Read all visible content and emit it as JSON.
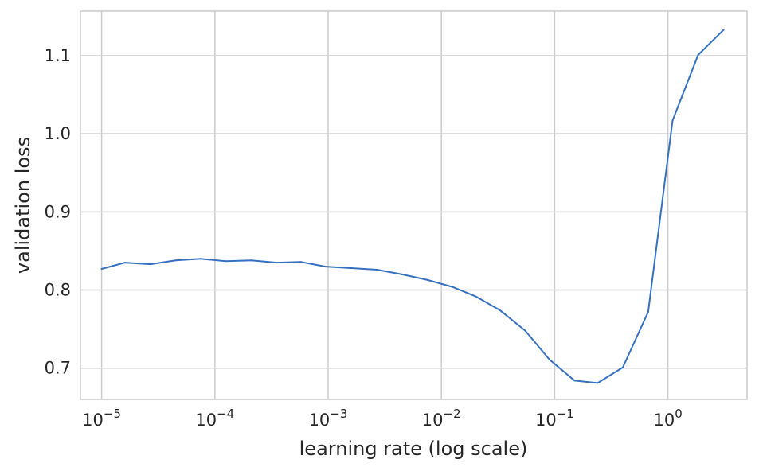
{
  "chart_data": {
    "type": "line",
    "title": "",
    "xlabel": "learning rate (log scale)",
    "ylabel": "validation loss",
    "xscale": "log",
    "xlim": [
      6.5e-06,
      5.0
    ],
    "ylim": [
      0.66,
      1.157
    ],
    "grid": true,
    "line_color": "#3571c0",
    "x_ticks": [
      {
        "value": 1e-05,
        "base": "10",
        "exp": "−5"
      },
      {
        "value": 0.0001,
        "base": "10",
        "exp": "−4"
      },
      {
        "value": 0.001,
        "base": "10",
        "exp": "−3"
      },
      {
        "value": 0.01,
        "base": "10",
        "exp": "−2"
      },
      {
        "value": 0.1,
        "base": "10",
        "exp": "−1"
      },
      {
        "value": 1,
        "base": "10",
        "exp": "0"
      }
    ],
    "y_ticks": [
      {
        "value": 0.7,
        "label": "0.7"
      },
      {
        "value": 0.8,
        "label": "0.8"
      },
      {
        "value": 0.9,
        "label": "0.9"
      },
      {
        "value": 1.0,
        "label": "1.0"
      },
      {
        "value": 1.1,
        "label": "1.1"
      }
    ],
    "x": [
      1e-05,
      1.6e-05,
      2.7e-05,
      4.5e-05,
      7.5e-05,
      0.000125,
      0.00021,
      0.00035,
      0.00057,
      0.00095,
      0.0016,
      0.0027,
      0.0045,
      0.0075,
      0.0125,
      0.02,
      0.033,
      0.055,
      0.09,
      0.15,
      0.24,
      0.4,
      0.67,
      1.1,
      1.85,
      3.1
    ],
    "y": [
      0.827,
      0.835,
      0.833,
      0.838,
      0.84,
      0.837,
      0.838,
      0.835,
      0.836,
      0.83,
      0.828,
      0.826,
      0.82,
      0.813,
      0.804,
      0.792,
      0.774,
      0.748,
      0.711,
      0.684,
      0.681,
      0.701,
      0.772,
      1.017,
      1.101,
      1.133
    ]
  }
}
